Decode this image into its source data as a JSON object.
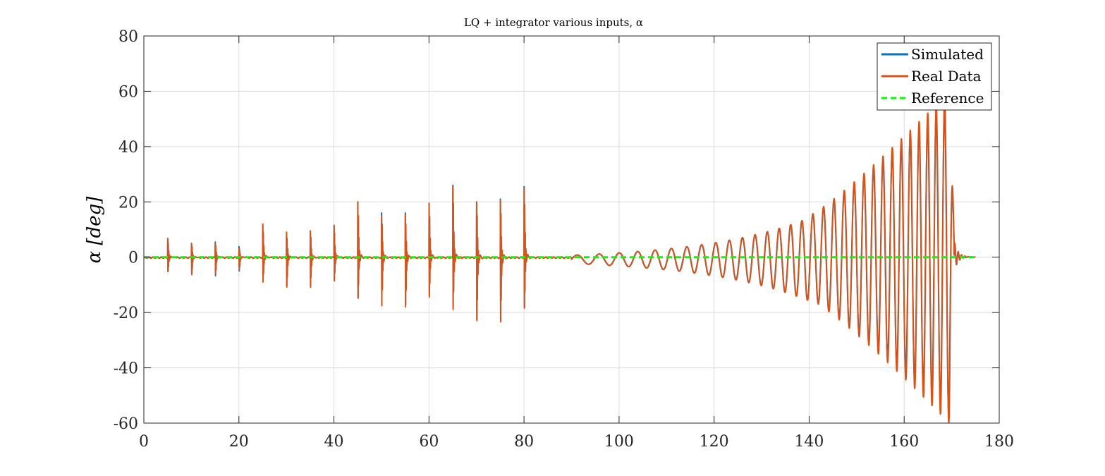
{
  "chart_data": {
    "type": "line",
    "title": "LQ + integrator various inputs, α",
    "xlabel": "",
    "ylabel": "α [deg]",
    "xlim": [
      0,
      180
    ],
    "ylim": [
      -60,
      80
    ],
    "xticks": [
      0,
      20,
      40,
      60,
      80,
      100,
      120,
      140,
      160,
      180
    ],
    "yticks": [
      -60,
      -40,
      -20,
      0,
      20,
      40,
      60,
      80
    ],
    "grid": true,
    "legend_position": "top-right",
    "pulse_times": [
      5,
      10,
      15,
      20,
      25,
      30,
      35,
      40,
      45,
      50,
      55,
      60,
      65,
      70,
      75,
      80
    ],
    "pulse_peaks_real": [
      [
        6.8,
        -5.5
      ],
      [
        5.0,
        -7.0
      ],
      [
        5.0,
        -7.0
      ],
      [
        3.0,
        -5.0
      ],
      [
        12.0,
        -10.0
      ],
      [
        9.0,
        -12.0
      ],
      [
        9.5,
        -12.0
      ],
      [
        11.5,
        -9.5
      ],
      [
        20.0,
        -16.5
      ],
      [
        15.0,
        -19.5
      ],
      [
        15.5,
        -20.0
      ],
      [
        19.5,
        -16.0
      ],
      [
        25.5,
        -21.0
      ],
      [
        20.0,
        -25.5
      ],
      [
        20.5,
        -26.0
      ],
      [
        25.0,
        -20.5
      ]
    ],
    "pulse_peaks_sim": [
      [
        6.0,
        -5.8
      ],
      [
        5.0,
        -6.5
      ],
      [
        5.5,
        -7.5
      ],
      [
        3.8,
        -5.5
      ],
      [
        11.5,
        -9.5
      ],
      [
        9.0,
        -11.5
      ],
      [
        9.5,
        -12.0
      ],
      [
        11.5,
        -9.0
      ],
      [
        20.0,
        -16.0
      ],
      [
        16.0,
        -19.0
      ],
      [
        16.0,
        -19.0
      ],
      [
        19.5,
        -15.5
      ],
      [
        26.0,
        -20.0
      ],
      [
        20.0,
        -25.0
      ],
      [
        21.0,
        -25.5
      ],
      [
        25.5,
        -20.0
      ]
    ],
    "chirp": {
      "start_time": 90,
      "end_time": 170.5,
      "settle_end_time": 175,
      "start_freq_hz": 0.2,
      "end_freq_hz": 0.58,
      "amp_at_90": 1.5,
      "amp_at_140": 15,
      "amp_peak_real": 60,
      "amp_peak_sim": 56,
      "peak_time": 169.5
    },
    "series": [
      {
        "name": "Simulated",
        "color": "#0072BD",
        "style": "solid"
      },
      {
        "name": "Real Data",
        "color": "#D95319",
        "style": "solid"
      },
      {
        "name": "Reference",
        "color": "#00FF00",
        "style": "dashed",
        "value": 0
      }
    ]
  }
}
